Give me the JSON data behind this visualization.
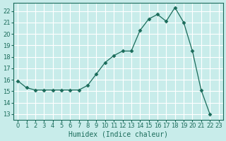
{
  "x": [
    0,
    1,
    2,
    3,
    4,
    5,
    6,
    7,
    8,
    9,
    10,
    11,
    12,
    13,
    14,
    15,
    16,
    17,
    18,
    19,
    20,
    21,
    22
  ],
  "y": [
    15.9,
    15.3,
    15.1,
    15.1,
    15.1,
    15.1,
    15.1,
    15.1,
    15.5,
    16.5,
    17.5,
    18.1,
    18.5,
    18.5,
    20.3,
    21.3,
    21.7,
    21.1,
    22.3,
    21.0,
    18.5,
    15.1,
    13.0
  ],
  "line_color": "#1a6b5a",
  "marker": "D",
  "marker_size": 2.5,
  "bg_color": "#c8ecea",
  "grid_color": "#ffffff",
  "xlabel": "Humidex (Indice chaleur)",
  "xlim": [
    -0.5,
    23.5
  ],
  "ylim": [
    12.5,
    22.7
  ],
  "yticks": [
    13,
    14,
    15,
    16,
    17,
    18,
    19,
    20,
    21,
    22
  ],
  "xticks": [
    0,
    1,
    2,
    3,
    4,
    5,
    6,
    7,
    8,
    9,
    10,
    11,
    12,
    13,
    14,
    15,
    16,
    17,
    18,
    19,
    20,
    21,
    22,
    23
  ],
  "tick_color": "#1a6b5a",
  "label_fontsize": 7,
  "tick_fontsize": 6.0
}
